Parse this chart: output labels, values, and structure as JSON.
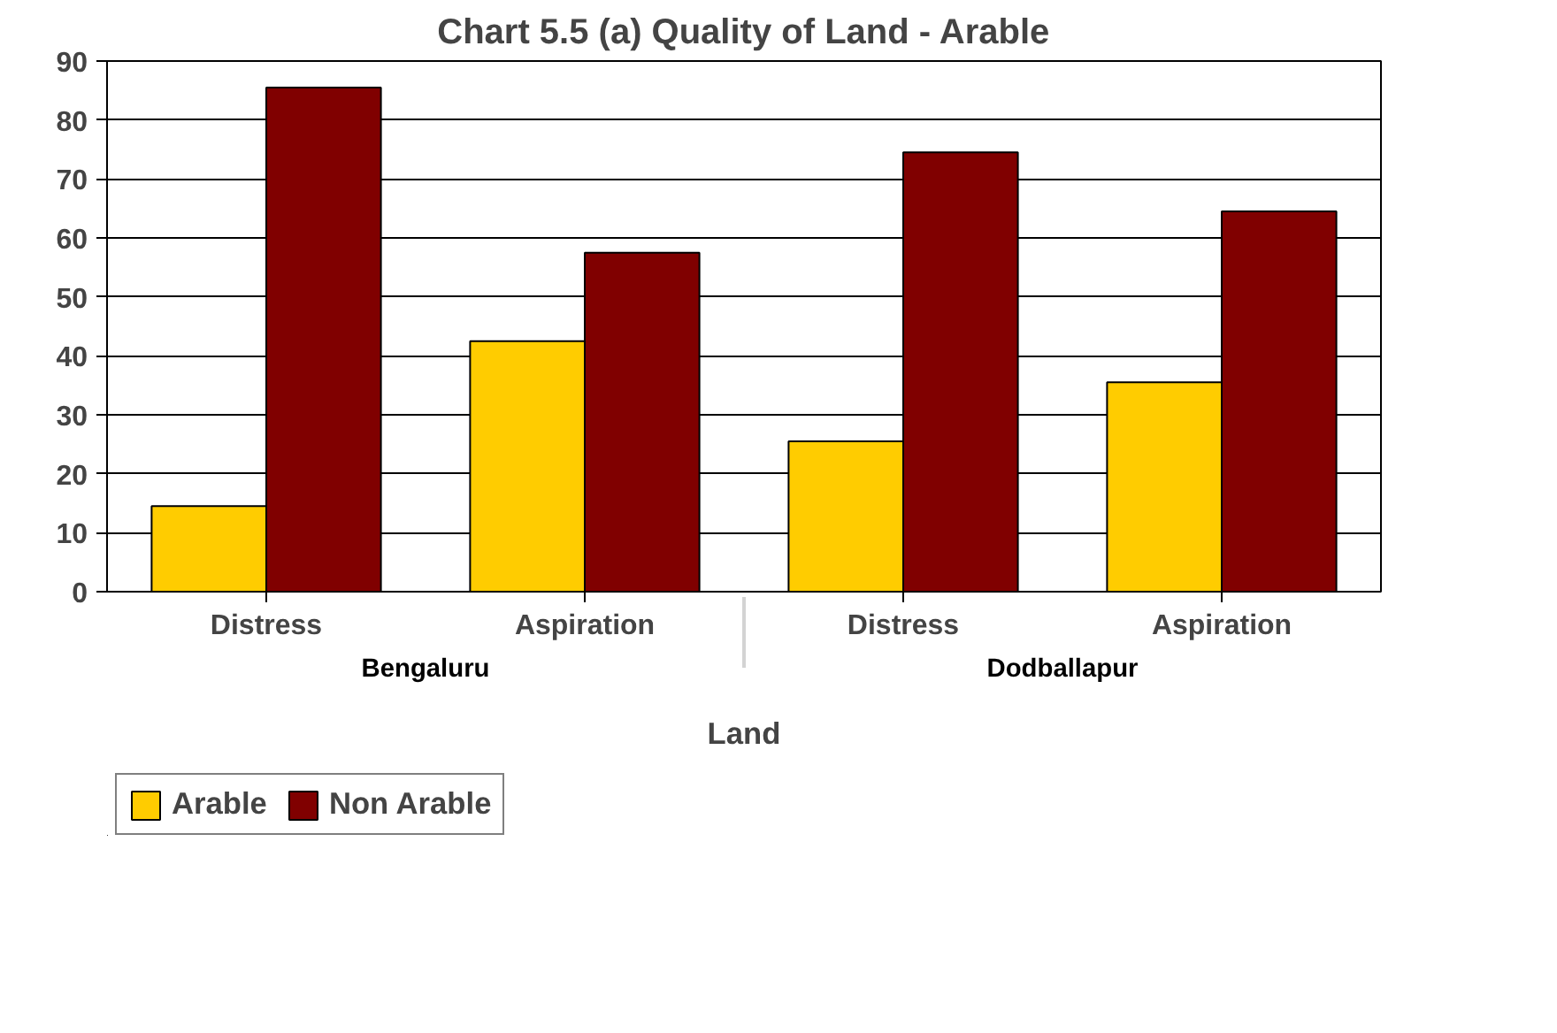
{
  "chart_data": {
    "type": "bar",
    "title": "Chart 5.5 (a) Quality of Land - Arable",
    "xlabel": "Land",
    "categories": [
      "Distress",
      "Aspiration",
      "Distress",
      "Aspiration"
    ],
    "annotations": [
      "Bengaluru",
      "Dodballapur"
    ],
    "series": [
      {
        "name": "Arable",
        "color": "#ffcc00",
        "values": [
          14.5,
          42.5,
          25.5,
          35.5
        ]
      },
      {
        "name": "Non Arable",
        "color": "#800000",
        "values": [
          85.5,
          57.5,
          74.5,
          64.5
        ]
      }
    ],
    "ylim": [
      0,
      90
    ],
    "yticks": [
      0,
      10,
      20,
      30,
      40,
      50,
      60,
      70,
      80,
      90
    ],
    "grid": "y",
    "legend": "bottom left"
  }
}
